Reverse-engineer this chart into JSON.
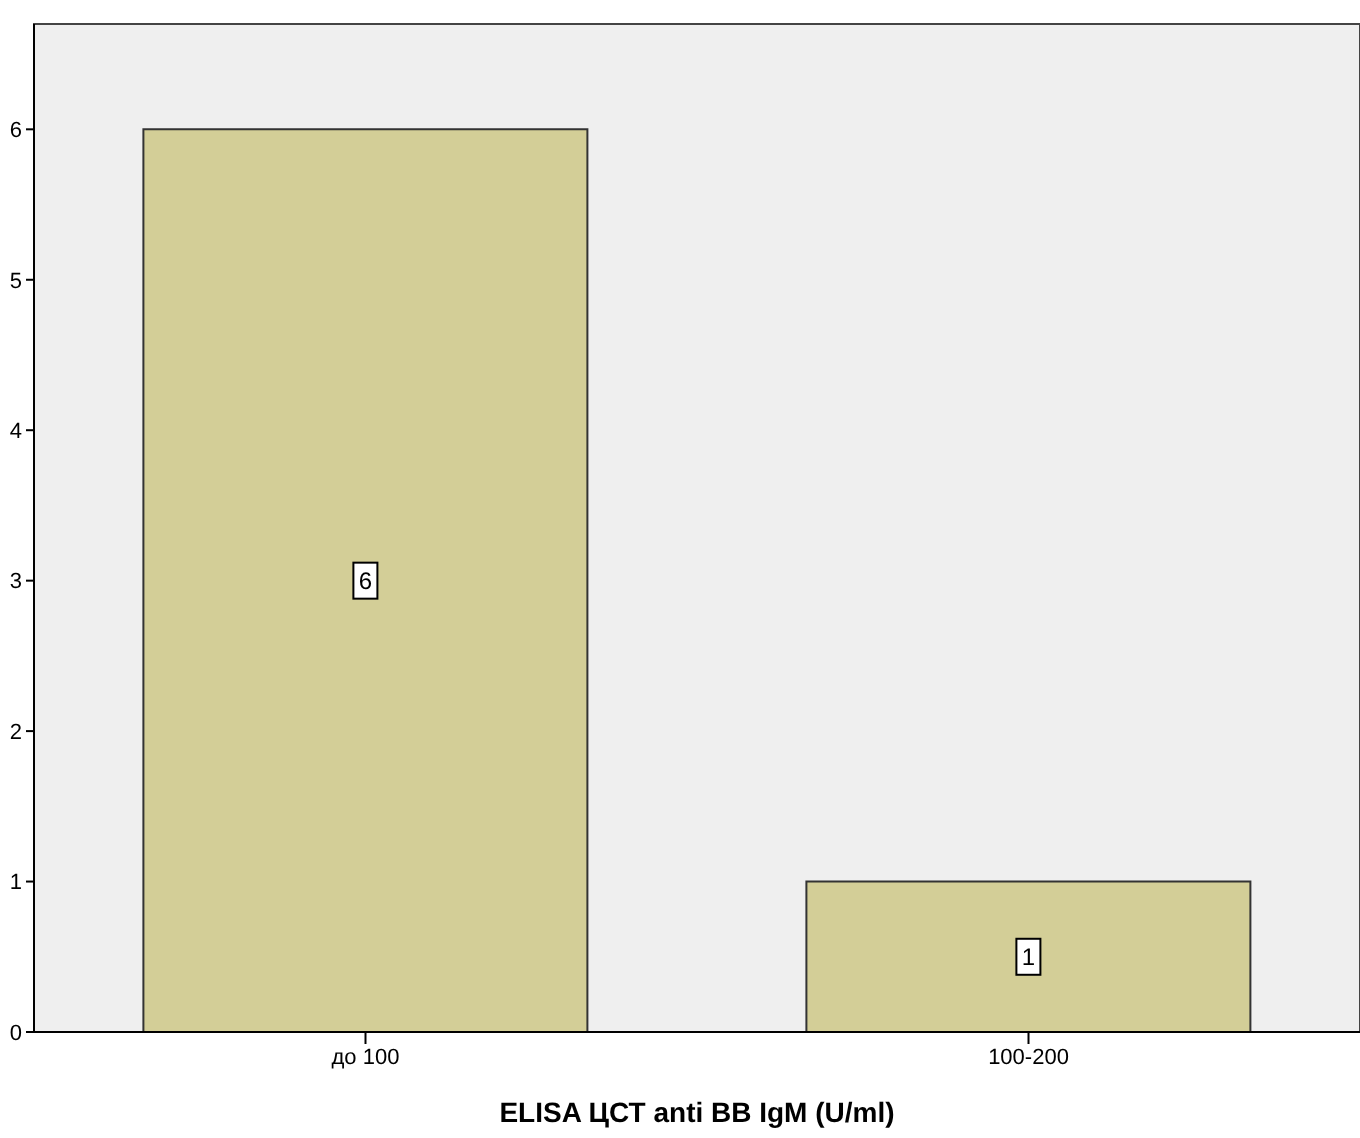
{
  "chart_data": {
    "type": "bar",
    "xlabel": "ELISA ЦСТ anti BB IgM (U/ml)",
    "categories": [
      "до 100",
      "100-200"
    ],
    "values": [
      6,
      1
    ],
    "color": "#d3ce97",
    "ylim": [
      0,
      6.7
    ],
    "yticks": [
      0,
      1,
      2,
      3,
      4,
      5,
      6
    ],
    "data_labels": true
  }
}
